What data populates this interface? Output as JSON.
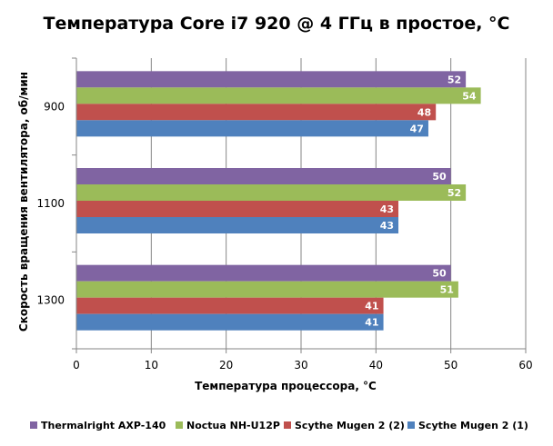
{
  "chart_data": {
    "type": "bar",
    "orientation": "horizontal",
    "title": "Температура Core i7 920 @ 4 ГГц в простое, °С",
    "xlabel": "Температура процессора, °С",
    "ylabel": "Скорость вращения вентилятора, об/мин",
    "categories": [
      "900",
      "1100",
      "1300"
    ],
    "xlim": [
      0,
      60
    ],
    "xticks": [
      0,
      10,
      20,
      30,
      40,
      50,
      60
    ],
    "grid": true,
    "legend_position": "bottom",
    "series": [
      {
        "name": "Thermalright AXP-140",
        "color": "#8064a2",
        "values": [
          52,
          50,
          50
        ]
      },
      {
        "name": "Noctua NH-U12P",
        "color": "#9bbb59",
        "values": [
          54,
          52,
          51
        ]
      },
      {
        "name": "Scythe Mugen 2 (2)",
        "color": "#c0504d",
        "values": [
          48,
          43,
          41
        ]
      },
      {
        "name": "Scythe Mugen 2 (1)",
        "color": "#4f81bd",
        "values": [
          47,
          43,
          41
        ]
      }
    ]
  }
}
